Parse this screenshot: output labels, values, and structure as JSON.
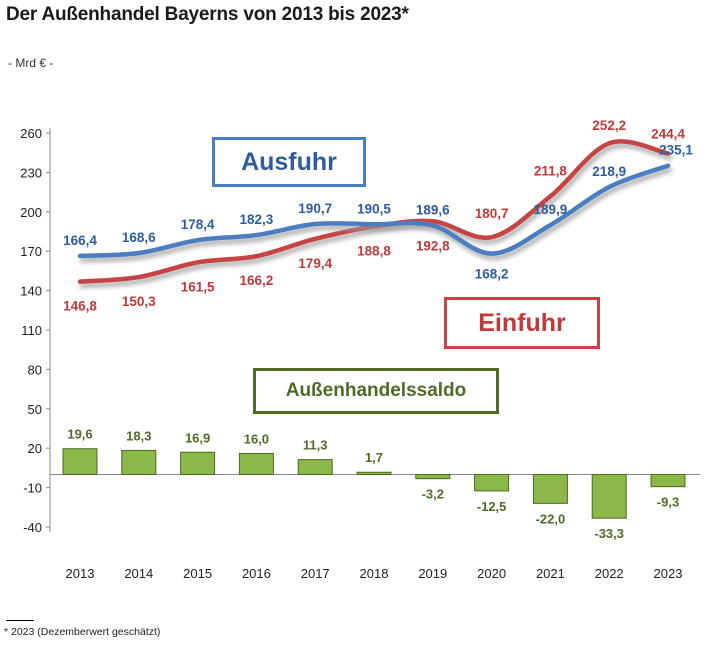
{
  "title": "Der Außenhandel Bayerns von 2013 bis 2023*",
  "unit": "- Mrd € -",
  "footnote": "* 2023 (Dezemberwert geschätzt)",
  "labels": {
    "ausfuhr": "Ausfuhr",
    "einfuhr": "Einfuhr",
    "saldo": "Außenhandelssaldo"
  },
  "colors": {
    "ausfuhr": "#4a7ec0",
    "einfuhr": "#c74444",
    "saldo": "#8cb84a",
    "saldo_text": "#4f6b25"
  },
  "chart_data": {
    "type": "line",
    "categories": [
      "2013",
      "2014",
      "2015",
      "2016",
      "2017",
      "2018",
      "2019",
      "2020",
      "2021",
      "2022",
      "2023"
    ],
    "y_ticks": [
      "260",
      "230",
      "200",
      "170",
      "140",
      "110",
      "80",
      "50",
      "20",
      "-10",
      "-40"
    ],
    "ylim": [
      -40,
      260
    ],
    "grid": false,
    "series": [
      {
        "name": "Ausfuhr",
        "type": "line",
        "values": [
          166.4,
          168.6,
          178.4,
          182.3,
          190.7,
          190.5,
          189.6,
          168.2,
          189.9,
          218.9,
          235.1
        ],
        "value_labels": [
          "166,4",
          "168,6",
          "178,4",
          "182,3",
          "190,7",
          "190,5",
          "189,6",
          "168,2",
          "189,9",
          "218,9",
          "235,1"
        ]
      },
      {
        "name": "Einfuhr",
        "type": "line",
        "values": [
          146.8,
          150.3,
          161.5,
          166.2,
          179.4,
          188.8,
          192.8,
          180.7,
          211.8,
          252.2,
          244.4
        ],
        "value_labels": [
          "146,8",
          "150,3",
          "161,5",
          "166,2",
          "179,4",
          "188,8",
          "192,8",
          "180,7",
          "211,8",
          "252,2",
          "244,4"
        ]
      },
      {
        "name": "Außenhandelssaldo",
        "type": "bar",
        "values": [
          19.6,
          18.3,
          16.9,
          16.0,
          11.3,
          1.7,
          -3.2,
          -12.5,
          -22.0,
          -33.3,
          -9.3
        ],
        "value_labels": [
          "19,6",
          "18,3",
          "16,9",
          "16,0",
          "11,3",
          "1,7",
          "-3,2",
          "-12,5",
          "-22,0",
          "-33,3",
          "-9,3"
        ]
      }
    ]
  }
}
